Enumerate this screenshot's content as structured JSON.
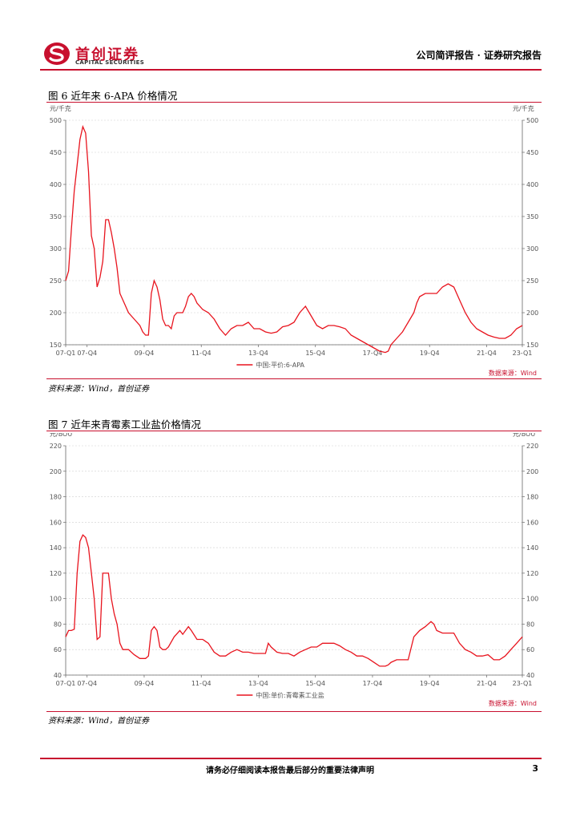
{
  "header": {
    "logo_cn": "首创证券",
    "logo_en": "CAPITAL SECURITIES",
    "report_type": "公司简评报告 · 证券研究报告",
    "brand_color": "#c8102e"
  },
  "figures": [
    {
      "title": "图  6  近年来 6-APA 价格情况",
      "source": "资料来源：Wind，首创证券"
    },
    {
      "title": "图  7  近年来青霉素工业盐价格情况",
      "source": "资料来源：Wind，首创证券"
    }
  ],
  "chart_data": [
    {
      "type": "line",
      "left_unit": "元/千克",
      "right_unit": "元/千克",
      "ylim": [
        150,
        500
      ],
      "yticks": [
        150,
        200,
        250,
        300,
        350,
        400,
        450,
        500
      ],
      "xlim": [
        2007.0,
        2023.0
      ],
      "xtick_labels": [
        "07-Q1",
        "07-Q4",
        "09-Q4",
        "11-Q4",
        "13-Q4",
        "15-Q4",
        "17-Q4",
        "19-Q4",
        "21-Q4",
        "23-Q1"
      ],
      "xtick_pos": [
        2007.0,
        2007.75,
        2009.75,
        2011.75,
        2013.75,
        2015.75,
        2017.75,
        2019.75,
        2021.75,
        2023.0
      ],
      "legend": "中国:平价:6-APA",
      "legend_placement": "bottom-center",
      "credit": "数据来源：Wind",
      "grid": true,
      "series": [
        {
          "color": "#e8141e",
          "points": [
            [
              2007.0,
              250
            ],
            [
              2007.1,
              265
            ],
            [
              2007.2,
              330
            ],
            [
              2007.3,
              390
            ],
            [
              2007.4,
              430
            ],
            [
              2007.5,
              470
            ],
            [
              2007.6,
              490
            ],
            [
              2007.7,
              480
            ],
            [
              2007.8,
              420
            ],
            [
              2007.9,
              320
            ],
            [
              2008.0,
              300
            ],
            [
              2008.1,
              240
            ],
            [
              2008.2,
              255
            ],
            [
              2008.3,
              280
            ],
            [
              2008.4,
              345
            ],
            [
              2008.5,
              345
            ],
            [
              2008.6,
              325
            ],
            [
              2008.7,
              300
            ],
            [
              2008.8,
              270
            ],
            [
              2008.9,
              230
            ],
            [
              2009.0,
              220
            ],
            [
              2009.2,
              200
            ],
            [
              2009.4,
              190
            ],
            [
              2009.6,
              180
            ],
            [
              2009.7,
              170
            ],
            [
              2009.8,
              165
            ],
            [
              2009.9,
              165
            ],
            [
              2010.0,
              230
            ],
            [
              2010.1,
              250
            ],
            [
              2010.2,
              240
            ],
            [
              2010.3,
              220
            ],
            [
              2010.4,
              190
            ],
            [
              2010.5,
              180
            ],
            [
              2010.6,
              180
            ],
            [
              2010.7,
              175
            ],
            [
              2010.8,
              195
            ],
            [
              2010.9,
              200
            ],
            [
              2011.0,
              200
            ],
            [
              2011.1,
              200
            ],
            [
              2011.2,
              210
            ],
            [
              2011.3,
              225
            ],
            [
              2011.4,
              230
            ],
            [
              2011.5,
              225
            ],
            [
              2011.6,
              215
            ],
            [
              2011.8,
              205
            ],
            [
              2012.0,
              200
            ],
            [
              2012.2,
              190
            ],
            [
              2012.4,
              175
            ],
            [
              2012.5,
              170
            ],
            [
              2012.6,
              165
            ],
            [
              2012.8,
              175
            ],
            [
              2013.0,
              180
            ],
            [
              2013.2,
              180
            ],
            [
              2013.4,
              185
            ],
            [
              2013.6,
              175
            ],
            [
              2013.8,
              175
            ],
            [
              2014.0,
              170
            ],
            [
              2014.2,
              168
            ],
            [
              2014.4,
              170
            ],
            [
              2014.6,
              178
            ],
            [
              2014.8,
              180
            ],
            [
              2015.0,
              185
            ],
            [
              2015.2,
              200
            ],
            [
              2015.4,
              210
            ],
            [
              2015.6,
              195
            ],
            [
              2015.8,
              180
            ],
            [
              2016.0,
              175
            ],
            [
              2016.2,
              180
            ],
            [
              2016.4,
              180
            ],
            [
              2016.6,
              178
            ],
            [
              2016.8,
              175
            ],
            [
              2017.0,
              165
            ],
            [
              2017.2,
              160
            ],
            [
              2017.4,
              155
            ],
            [
              2017.6,
              150
            ],
            [
              2017.8,
              145
            ],
            [
              2018.0,
              140
            ],
            [
              2018.2,
              138
            ],
            [
              2018.3,
              140
            ],
            [
              2018.4,
              150
            ],
            [
              2018.6,
              160
            ],
            [
              2018.8,
              170
            ],
            [
              2019.0,
              185
            ],
            [
              2019.2,
              200
            ],
            [
              2019.3,
              215
            ],
            [
              2019.4,
              225
            ],
            [
              2019.6,
              230
            ],
            [
              2019.8,
              230
            ],
            [
              2020.0,
              230
            ],
            [
              2020.2,
              240
            ],
            [
              2020.4,
              245
            ],
            [
              2020.6,
              240
            ],
            [
              2020.8,
              220
            ],
            [
              2021.0,
              200
            ],
            [
              2021.2,
              185
            ],
            [
              2021.4,
              175
            ],
            [
              2021.6,
              170
            ],
            [
              2021.8,
              165
            ],
            [
              2022.0,
              162
            ],
            [
              2022.2,
              160
            ],
            [
              2022.4,
              160
            ],
            [
              2022.6,
              165
            ],
            [
              2022.8,
              175
            ],
            [
              2023.0,
              180
            ]
          ]
        }
      ]
    },
    {
      "type": "line",
      "left_unit": "元/BOU",
      "right_unit": "元/BOU",
      "ylim": [
        40,
        220
      ],
      "yticks": [
        40,
        60,
        80,
        100,
        120,
        140,
        160,
        180,
        200,
        220
      ],
      "xlim": [
        2007.0,
        2023.0
      ],
      "xtick_labels": [
        "07-Q1",
        "07-Q4",
        "09-Q4",
        "11-Q4",
        "13-Q4",
        "15-Q4",
        "17-Q4",
        "19-Q4",
        "21-Q4",
        "23-Q1"
      ],
      "xtick_pos": [
        2007.0,
        2007.75,
        2009.75,
        2011.75,
        2013.75,
        2015.75,
        2017.75,
        2019.75,
        2021.75,
        2023.0
      ],
      "legend": "中国:单价:青霉素工业盐",
      "legend_placement": "bottom-center",
      "credit": "数据来源：Wind",
      "grid": true,
      "series": [
        {
          "color": "#e8141e",
          "points": [
            [
              2007.0,
              70
            ],
            [
              2007.1,
              75
            ],
            [
              2007.2,
              75
            ],
            [
              2007.3,
              76
            ],
            [
              2007.4,
              120
            ],
            [
              2007.5,
              145
            ],
            [
              2007.6,
              150
            ],
            [
              2007.7,
              148
            ],
            [
              2007.8,
              140
            ],
            [
              2007.9,
              120
            ],
            [
              2008.0,
              100
            ],
            [
              2008.1,
              68
            ],
            [
              2008.2,
              70
            ],
            [
              2008.3,
              120
            ],
            [
              2008.4,
              120
            ],
            [
              2008.5,
              120
            ],
            [
              2008.6,
              100
            ],
            [
              2008.7,
              88
            ],
            [
              2008.8,
              80
            ],
            [
              2008.9,
              65
            ],
            [
              2009.0,
              60
            ],
            [
              2009.2,
              60
            ],
            [
              2009.4,
              56
            ],
            [
              2009.6,
              53
            ],
            [
              2009.8,
              53
            ],
            [
              2009.9,
              55
            ],
            [
              2010.0,
              75
            ],
            [
              2010.1,
              78
            ],
            [
              2010.2,
              75
            ],
            [
              2010.3,
              62
            ],
            [
              2010.4,
              60
            ],
            [
              2010.5,
              60
            ],
            [
              2010.6,
              62
            ],
            [
              2010.8,
              70
            ],
            [
              2011.0,
              75
            ],
            [
              2011.1,
              72
            ],
            [
              2011.2,
              75
            ],
            [
              2011.3,
              78
            ],
            [
              2011.4,
              75
            ],
            [
              2011.6,
              68
            ],
            [
              2011.8,
              68
            ],
            [
              2012.0,
              65
            ],
            [
              2012.2,
              58
            ],
            [
              2012.4,
              55
            ],
            [
              2012.6,
              55
            ],
            [
              2012.8,
              58
            ],
            [
              2013.0,
              60
            ],
            [
              2013.2,
              58
            ],
            [
              2013.4,
              58
            ],
            [
              2013.6,
              57
            ],
            [
              2013.8,
              57
            ],
            [
              2014.0,
              57
            ],
            [
              2014.1,
              65
            ],
            [
              2014.2,
              62
            ],
            [
              2014.4,
              58
            ],
            [
              2014.6,
              57
            ],
            [
              2014.8,
              57
            ],
            [
              2015.0,
              55
            ],
            [
              2015.2,
              58
            ],
            [
              2015.4,
              60
            ],
            [
              2015.6,
              62
            ],
            [
              2015.8,
              62
            ],
            [
              2016.0,
              65
            ],
            [
              2016.2,
              65
            ],
            [
              2016.4,
              65
            ],
            [
              2016.6,
              63
            ],
            [
              2016.8,
              60
            ],
            [
              2017.0,
              58
            ],
            [
              2017.2,
              55
            ],
            [
              2017.4,
              55
            ],
            [
              2017.6,
              53
            ],
            [
              2017.8,
              50
            ],
            [
              2018.0,
              47
            ],
            [
              2018.2,
              47
            ],
            [
              2018.3,
              48
            ],
            [
              2018.4,
              50
            ],
            [
              2018.6,
              52
            ],
            [
              2018.8,
              52
            ],
            [
              2019.0,
              52
            ],
            [
              2019.2,
              70
            ],
            [
              2019.4,
              75
            ],
            [
              2019.6,
              78
            ],
            [
              2019.8,
              82
            ],
            [
              2019.9,
              80
            ],
            [
              2020.0,
              75
            ],
            [
              2020.2,
              73
            ],
            [
              2020.4,
              73
            ],
            [
              2020.6,
              73
            ],
            [
              2020.8,
              65
            ],
            [
              2021.0,
              60
            ],
            [
              2021.2,
              58
            ],
            [
              2021.4,
              55
            ],
            [
              2021.6,
              55
            ],
            [
              2021.8,
              56
            ],
            [
              2022.0,
              52
            ],
            [
              2022.2,
              52
            ],
            [
              2022.4,
              55
            ],
            [
              2022.6,
              60
            ],
            [
              2022.8,
              65
            ],
            [
              2023.0,
              70
            ]
          ]
        }
      ]
    }
  ]
}
